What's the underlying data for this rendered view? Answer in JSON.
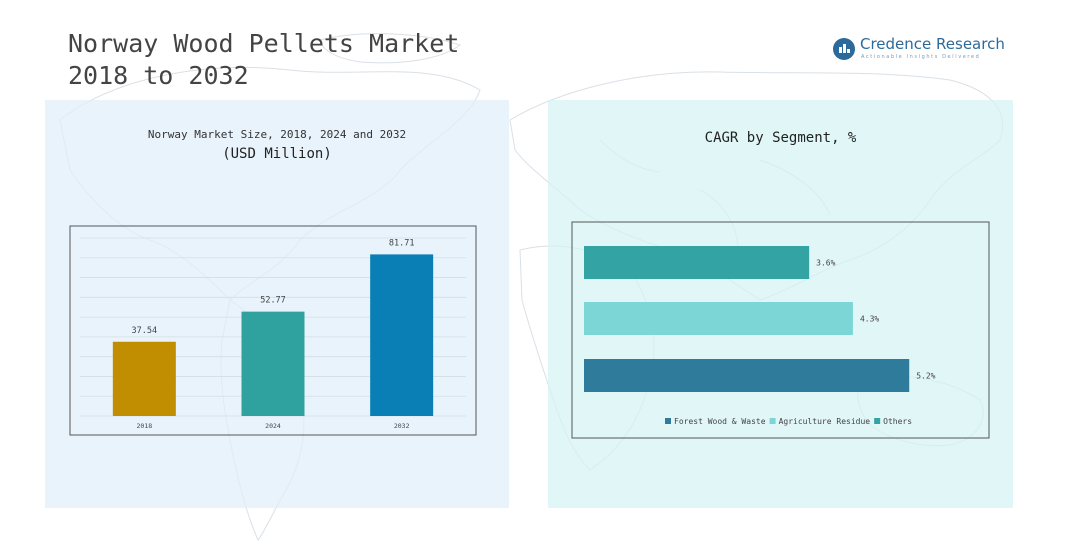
{
  "page": {
    "title": "Norway Wood Pellets Market\n2018 to 2032"
  },
  "logo": {
    "name": "Credence Research",
    "tagline": "Actionable Insights Delivered"
  },
  "colors": {
    "gold": "#c08e00",
    "teal": "#2fa2a0",
    "blue": "#0a7fb5",
    "dark_teal": "#2e7b9b",
    "light_teal": "#7dd6d6",
    "mid_teal": "#33a3a3"
  },
  "chart_data": [
    {
      "type": "bar",
      "title": "Norway Market Size, 2018, 2024 and 2032",
      "subtitle": "(USD Million)",
      "categories": [
        "2018",
        "2024",
        "2032"
      ],
      "values": [
        37.54,
        52.77,
        81.71
      ],
      "value_labels": [
        "37.54",
        "52.77",
        "81.71"
      ],
      "bar_colors": [
        "#c08e00",
        "#2fa2a0",
        "#0a7fb5"
      ],
      "ylim": [
        0,
        90
      ],
      "grid": true,
      "xlabel": "",
      "ylabel": ""
    },
    {
      "type": "bar",
      "orientation": "horizontal",
      "title": "CAGR by Segment, %",
      "categories": [
        "Others",
        "Agriculture Residue",
        "Forest Wood & Waste"
      ],
      "values": [
        3.6,
        4.3,
        5.2
      ],
      "value_labels": [
        "3.6%",
        "4.3%",
        "5.2%"
      ],
      "bar_colors": [
        "#33a3a3",
        "#7dd6d6",
        "#2e7b9b"
      ],
      "legend": [
        "Forest Wood & Waste",
        "Agriculture Residue",
        "Others"
      ],
      "legend_colors": [
        "#2e7b9b",
        "#7dd6d6",
        "#33a3a3"
      ],
      "legend_position": "bottom",
      "xlim": [
        0,
        5.5
      ]
    }
  ]
}
